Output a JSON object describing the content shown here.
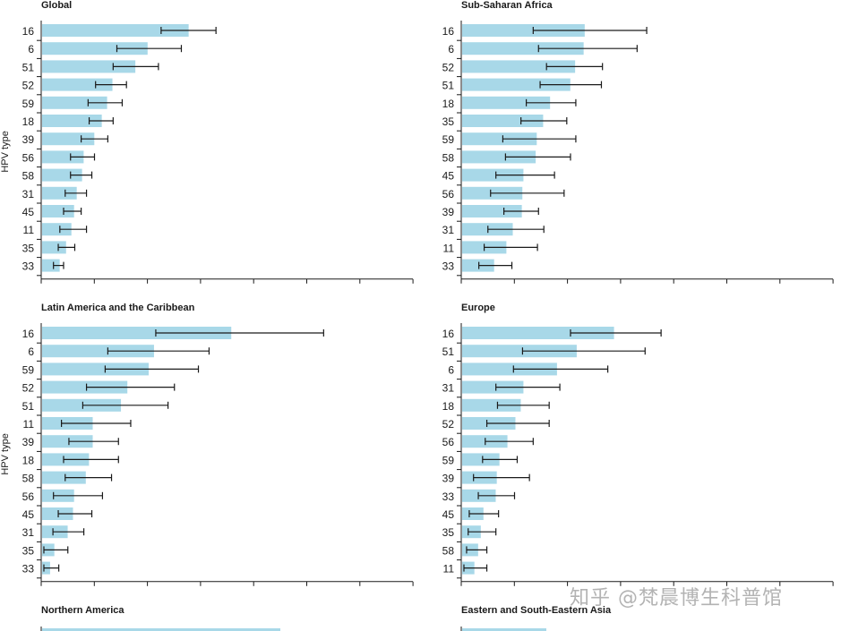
{
  "watermark": "知乎 @梵晨博生科普馆",
  "colors": {
    "bar": "#a8d8e8",
    "error": "#1a1a1a",
    "axis": "#1a1a1a"
  },
  "chart_data": [
    {
      "type": "bar",
      "orientation": "horizontal",
      "title": "Global",
      "ylabel": "HPV type",
      "categories": [
        "16",
        "6",
        "51",
        "52",
        "59",
        "18",
        "39",
        "56",
        "58",
        "31",
        "45",
        "11",
        "35",
        "33"
      ],
      "values": [
        27.5,
        19.8,
        17.5,
        13.2,
        12.2,
        11.2,
        9.8,
        7.8,
        7.5,
        6.5,
        6.0,
        5.5,
        4.5,
        3.3
      ],
      "error_low": [
        22.5,
        14.2,
        13.5,
        10.2,
        8.8,
        9.0,
        7.5,
        5.5,
        5.5,
        4.5,
        4.2,
        3.5,
        3.2,
        2.3
      ],
      "error_high": [
        32.8,
        26.3,
        22.0,
        16.0,
        15.2,
        13.5,
        12.5,
        10.0,
        9.5,
        8.5,
        7.5,
        8.5,
        6.3,
        4.2
      ]
    },
    {
      "type": "bar",
      "orientation": "horizontal",
      "title": "Sub-Saharan Africa",
      "ylabel": "",
      "categories": [
        "16",
        "6",
        "52",
        "51",
        "18",
        "35",
        "59",
        "58",
        "45",
        "56",
        "39",
        "31",
        "11",
        "33"
      ],
      "values": [
        23.0,
        22.8,
        21.2,
        20.3,
        16.5,
        15.2,
        14.0,
        13.8,
        11.5,
        11.3,
        11.2,
        9.5,
        8.3,
        6.0
      ],
      "error_low": [
        13.5,
        14.5,
        16.0,
        14.8,
        12.2,
        11.2,
        7.8,
        8.3,
        6.5,
        5.5,
        8.0,
        5.0,
        4.3,
        3.3
      ],
      "error_high": [
        34.8,
        33.0,
        26.5,
        26.3,
        21.5,
        19.8,
        21.5,
        20.5,
        17.5,
        19.3,
        14.5,
        15.5,
        14.3,
        9.5
      ]
    },
    {
      "type": "bar",
      "orientation": "horizontal",
      "title": "Latin America and the Caribbean",
      "ylabel": "HPV type",
      "categories": [
        "16",
        "6",
        "59",
        "52",
        "51",
        "11",
        "39",
        "18",
        "58",
        "56",
        "45",
        "31",
        "35",
        "33"
      ],
      "values": [
        35.5,
        21.0,
        20.0,
        16.0,
        14.8,
        9.5,
        9.5,
        8.8,
        8.2,
        6.0,
        5.8,
        4.8,
        2.3,
        1.5
      ],
      "error_low": [
        21.5,
        12.5,
        12.0,
        8.5,
        7.8,
        3.8,
        5.2,
        4.2,
        4.5,
        2.3,
        3.2,
        2.2,
        0.5,
        0.5
      ],
      "error_high": [
        53.0,
        31.5,
        29.5,
        25.0,
        23.8,
        16.8,
        14.5,
        14.5,
        13.2,
        11.5,
        9.5,
        8.0,
        5.0,
        3.3
      ]
    },
    {
      "type": "bar",
      "orientation": "horizontal",
      "title": "Europe",
      "ylabel": "",
      "categories": [
        "16",
        "51",
        "6",
        "31",
        "18",
        "52",
        "56",
        "59",
        "39",
        "33",
        "45",
        "35",
        "58",
        "11"
      ],
      "values": [
        28.5,
        21.5,
        17.8,
        11.5,
        11.0,
        10.0,
        8.5,
        7.0,
        6.5,
        6.3,
        4.0,
        3.5,
        3.0,
        2.3
      ],
      "error_low": [
        20.5,
        11.5,
        9.8,
        6.5,
        6.8,
        4.8,
        4.5,
        4.0,
        2.3,
        3.2,
        1.5,
        1.3,
        1.0,
        0.5
      ],
      "error_high": [
        37.5,
        34.5,
        27.5,
        18.5,
        16.5,
        16.5,
        13.5,
        10.5,
        12.8,
        10.0,
        7.0,
        6.5,
        4.8,
        4.8
      ]
    }
  ],
  "partial_panels": [
    {
      "title": "Northern America"
    },
    {
      "title": "Eastern and South-Eastern Asia"
    }
  ]
}
